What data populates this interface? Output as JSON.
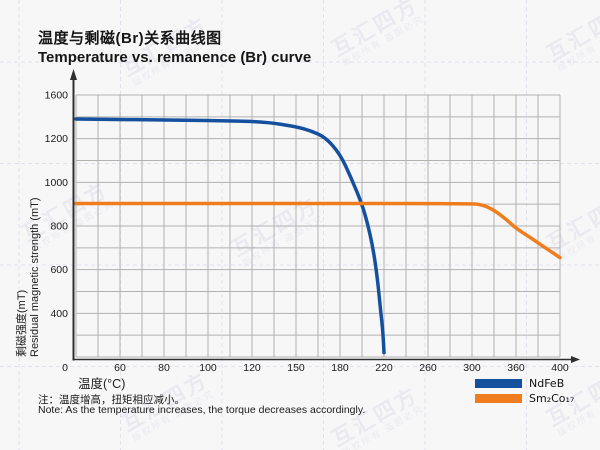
{
  "watermark": {
    "brand": "互汇四方",
    "notice": "版权所有 盗图必究"
  },
  "chart_data": {
    "type": "line",
    "title_zh": "温度与剩磁(Br)关系曲线图",
    "title_en": "Temperature vs. remanence (Br) curve",
    "xlabel": "温度(°C)",
    "ylabel_zh": "剩磁强度(mT)",
    "ylabel_en": "Residual magnetic strength (mT)",
    "x_tick_labels": [
      "0",
      "60",
      "80",
      "100",
      "120",
      "150",
      "180",
      "220",
      "260",
      "300",
      "360",
      "400"
    ],
    "x_tick_values": [
      0,
      60,
      80,
      100,
      120,
      150,
      180,
      220,
      260,
      300,
      360,
      400
    ],
    "y_tick_labels": [
      "1600",
      "1200",
      "1000",
      "800",
      "600",
      "400"
    ],
    "y_axis_anchor_values": [
      1600,
      1200,
      1000,
      800,
      600,
      400,
      0
    ],
    "origin_label": "0",
    "grid": true,
    "legend_position": "bottom-right",
    "note_zh": "注：温度增高，扭矩相应减小。",
    "note_en": "Note: As the temperature increases, the torque decreases accordingly.",
    "colors": {
      "grid": "#b2b2b2",
      "axis": "#2f2f2f",
      "text": "#1a1a1a"
    },
    "series": [
      {
        "name": "NdFeB",
        "display_name": "NdFeB",
        "color": "#15509e",
        "points": [
          [
            0,
            1380
          ],
          [
            40,
            1377
          ],
          [
            80,
            1371
          ],
          [
            110,
            1364
          ],
          [
            130,
            1352
          ],
          [
            150,
            1310
          ],
          [
            160,
            1272
          ],
          [
            170,
            1213
          ],
          [
            180,
            1130
          ],
          [
            190,
            1022
          ],
          [
            200,
            900
          ],
          [
            205,
            812
          ],
          [
            210,
            700
          ],
          [
            214,
            562
          ],
          [
            217,
            408
          ],
          [
            219,
            235
          ],
          [
            220,
            40
          ]
        ]
      },
      {
        "name": "Sm2Co17",
        "display_name": "Sm₂Co₁₇",
        "color": "#ef7d1e",
        "points": [
          [
            0,
            903
          ],
          [
            60,
            903
          ],
          [
            120,
            903
          ],
          [
            180,
            903
          ],
          [
            240,
            903
          ],
          [
            300,
            902
          ],
          [
            310,
            899
          ],
          [
            320,
            889
          ],
          [
            330,
            872
          ],
          [
            340,
            848
          ],
          [
            350,
            820
          ],
          [
            360,
            790
          ],
          [
            370,
            757
          ],
          [
            380,
            723
          ],
          [
            390,
            689
          ],
          [
            400,
            655
          ]
        ]
      }
    ]
  }
}
